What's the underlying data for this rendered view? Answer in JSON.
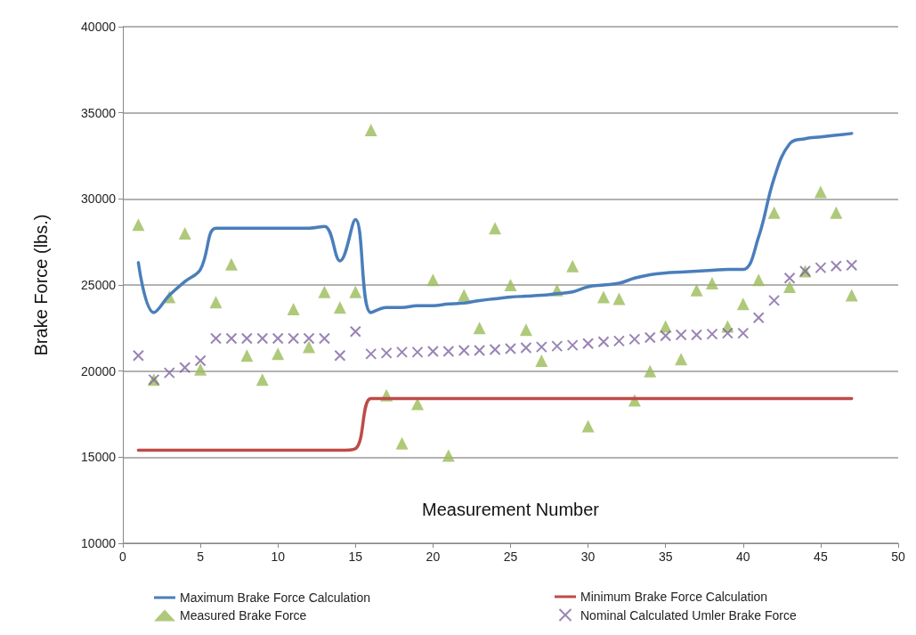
{
  "chart_data": {
    "type": "line",
    "xlabel": "Measurement Number",
    "ylabel": "Brake Force (lbs.)",
    "x": [
      1,
      2,
      3,
      4,
      5,
      6,
      7,
      8,
      9,
      10,
      11,
      12,
      13,
      14,
      15,
      16,
      17,
      18,
      19,
      20,
      21,
      22,
      23,
      24,
      25,
      26,
      27,
      28,
      29,
      30,
      31,
      32,
      33,
      34,
      35,
      36,
      37,
      38,
      39,
      40,
      41,
      42,
      43,
      44,
      45,
      46,
      47
    ],
    "series": [
      {
        "name": "Maximum Brake Force Calculation",
        "marker": "none",
        "color": "#4a7ebb",
        "values": [
          26300,
          23400,
          24400,
          25200,
          25900,
          28300,
          28300,
          28300,
          28300,
          28300,
          28300,
          28300,
          28400,
          26400,
          28800,
          23400,
          23700,
          23700,
          23800,
          23800,
          23900,
          23950,
          24100,
          24200,
          24300,
          24350,
          24400,
          24500,
          24600,
          24900,
          25000,
          25100,
          25400,
          25600,
          25700,
          25750,
          25800,
          25850,
          25900,
          25900,
          27800,
          31200,
          33200,
          33500,
          33600,
          33700,
          33800
        ]
      },
      {
        "name": "Minimum Brake Force Calculation",
        "marker": "none",
        "color": "#be4b48",
        "values": [
          15400,
          15400,
          15400,
          15400,
          15400,
          15400,
          15400,
          15400,
          15400,
          15400,
          15400,
          15400,
          15400,
          15400,
          15500,
          18400,
          18400,
          18400,
          18400,
          18400,
          18400,
          18400,
          18400,
          18400,
          18400,
          18400,
          18400,
          18400,
          18400,
          18400,
          18400,
          18400,
          18400,
          18400,
          18400,
          18400,
          18400,
          18400,
          18400,
          18400,
          18400,
          18400,
          18400,
          18400,
          18400,
          18400,
          18400
        ]
      },
      {
        "name": "Measured Brake Force",
        "type": "scatter",
        "marker": "triangle",
        "color": "#9bbb59",
        "values": [
          28500,
          19500,
          24300,
          28000,
          20100,
          24000,
          26200,
          20900,
          19500,
          21000,
          23600,
          21400,
          24600,
          23700,
          24600,
          34000,
          18600,
          15800,
          18100,
          25300,
          15100,
          24400,
          22500,
          28300,
          25000,
          22400,
          20600,
          24700,
          26100,
          16800,
          24300,
          24200,
          18300,
          20000,
          22600,
          20700,
          24700,
          25100,
          22600,
          23900,
          25300,
          29200,
          24900,
          25800,
          30400,
          29200,
          24400
        ]
      },
      {
        "name": "Nominal Calculated Umler Brake Force",
        "type": "scatter",
        "marker": "cross",
        "color": "#8064a2",
        "values": [
          20900,
          19500,
          19900,
          20200,
          20600,
          21900,
          21900,
          21900,
          21900,
          21900,
          21900,
          21900,
          21900,
          20900,
          22300,
          21000,
          21050,
          21100,
          21100,
          21150,
          21150,
          21200,
          21200,
          21250,
          21300,
          21350,
          21400,
          21450,
          21500,
          21600,
          21700,
          21750,
          21850,
          21950,
          22050,
          22100,
          22100,
          22150,
          22200,
          22200,
          23100,
          24100,
          25400,
          25800,
          26000,
          26100,
          26150
        ]
      }
    ],
    "xlim": [
      0,
      50
    ],
    "xticks": [
      0,
      5,
      10,
      15,
      20,
      25,
      30,
      35,
      40,
      45,
      50
    ],
    "ylim": [
      10000,
      40000
    ],
    "yticks": [
      10000,
      15000,
      20000,
      25000,
      30000,
      35000,
      40000
    ],
    "grid": "y",
    "legend": "bottom"
  }
}
